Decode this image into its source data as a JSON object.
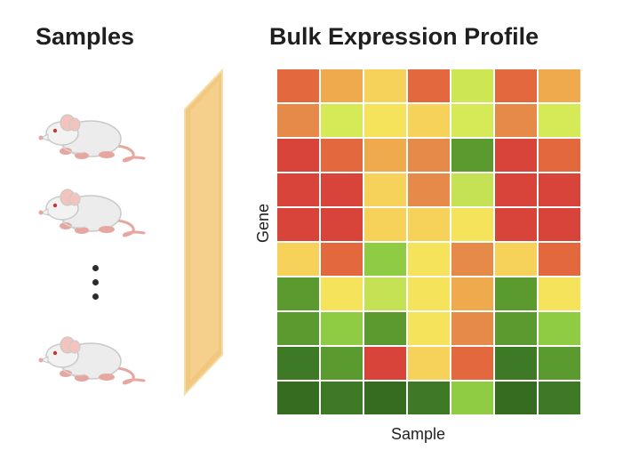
{
  "titles": {
    "samples": "Samples",
    "bulk": "Bulk Expression Profile"
  },
  "axes": {
    "x": "Sample",
    "y": "Gene"
  },
  "samples": {
    "mouse_icon": "mouse-icon",
    "visible_mice": 3,
    "ellipsis_dots": 3
  },
  "colors": {
    "accent_filter": "#f2c77e",
    "title_text": "#1f1f1f"
  },
  "heatmap": {
    "rows": 10,
    "cols": 7,
    "cell_colors": [
      [
        "#e3683d",
        "#f0aa4e",
        "#f6d25a",
        "#e3683d",
        "#cde653",
        "#e3683d",
        "#f0aa4e"
      ],
      [
        "#e58a48",
        "#d6ea58",
        "#f6e35c",
        "#f6d25a",
        "#d6ea58",
        "#e58a48",
        "#d6ea58"
      ],
      [
        "#d9443a",
        "#e3683d",
        "#f0aa4e",
        "#e58a48",
        "#5a9a2e",
        "#d9443a",
        "#e3683d"
      ],
      [
        "#d9443a",
        "#d9443a",
        "#f6d25a",
        "#e58a48",
        "#c5e255",
        "#d9443a",
        "#d9443a"
      ],
      [
        "#d9443a",
        "#d9443a",
        "#f6d25a",
        "#f6d25a",
        "#f6e35c",
        "#d9443a",
        "#d9443a"
      ],
      [
        "#f6d25a",
        "#e3683d",
        "#8fcc44",
        "#f6e35c",
        "#e58a48",
        "#f6d25a",
        "#e3683d"
      ],
      [
        "#5a9a2e",
        "#f6e35c",
        "#c5e255",
        "#f6e35c",
        "#f0aa4e",
        "#5a9a2e",
        "#f6e35c"
      ],
      [
        "#5a9a2e",
        "#8fcc44",
        "#5a9a2e",
        "#f6e35c",
        "#e58a48",
        "#5a9a2e",
        "#8fcc44"
      ],
      [
        "#3e7a26",
        "#5a9a2e",
        "#d9443a",
        "#f6d25a",
        "#e3683d",
        "#3e7a26",
        "#5a9a2e"
      ],
      [
        "#356c20",
        "#3e7a26",
        "#356c20",
        "#3e7a26",
        "#8fcc44",
        "#356c20",
        "#3e7a26"
      ]
    ]
  }
}
